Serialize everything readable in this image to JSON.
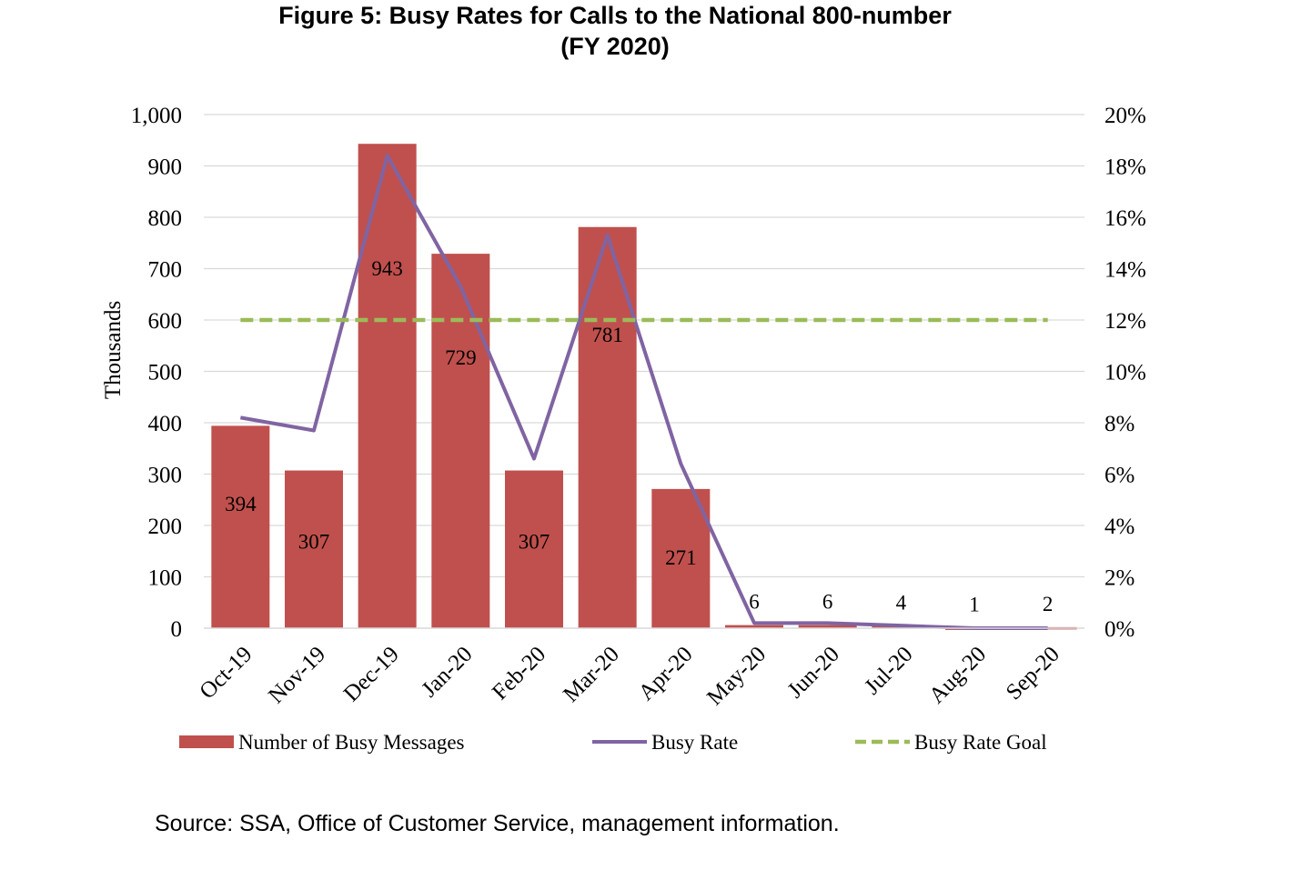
{
  "title_line1": "Figure 5:  Busy Rates for Calls to the National 800-number",
  "title_line2": "(FY 2020)",
  "source": "Source:  SSA, Office of Customer Service, management information.",
  "chart_data": {
    "type": "bar",
    "categories": [
      "Oct-19",
      "Nov-19",
      "Dec-19",
      "Jan-20",
      "Feb-20",
      "Mar-20",
      "Apr-20",
      "May-20",
      "Jun-20",
      "Jul-20",
      "Aug-20",
      "Sep-20"
    ],
    "series": [
      {
        "name": "Number of Busy Messages",
        "type": "bar",
        "axis": "left",
        "color": "#c0504d",
        "values": [
          394,
          307,
          943,
          729,
          307,
          781,
          271,
          6,
          6,
          4,
          1,
          2
        ],
        "labels": [
          "394",
          "307",
          "943",
          "729",
          "307",
          "781",
          "271",
          "6",
          "6",
          "4",
          "1",
          "2"
        ]
      },
      {
        "name": "Busy Rate",
        "type": "line",
        "axis": "right",
        "color": "#8064a2",
        "values": [
          8.2,
          7.7,
          18.4,
          13.3,
          6.6,
          15.3,
          6.4,
          0.2,
          0.2,
          0.1,
          0.0,
          0.0
        ]
      },
      {
        "name": "Busy Rate Goal",
        "type": "line",
        "dashed": true,
        "axis": "right",
        "color": "#9bbb59",
        "values": [
          12,
          12,
          12,
          12,
          12,
          12,
          12,
          12,
          12,
          12,
          12,
          12
        ]
      }
    ],
    "ylabel": "Thousands",
    "ylim": [
      0,
      1000
    ],
    "yticks": [
      "0",
      "100",
      "200",
      "300",
      "400",
      "500",
      "600",
      "700",
      "800",
      "900",
      "1,000"
    ],
    "y2lim": [
      0,
      20
    ],
    "y2ticks": [
      "0%",
      "2%",
      "4%",
      "6%",
      "8%",
      "10%",
      "12%",
      "14%",
      "16%",
      "18%",
      "20%"
    ],
    "grid": true,
    "legend_position": "bottom"
  }
}
